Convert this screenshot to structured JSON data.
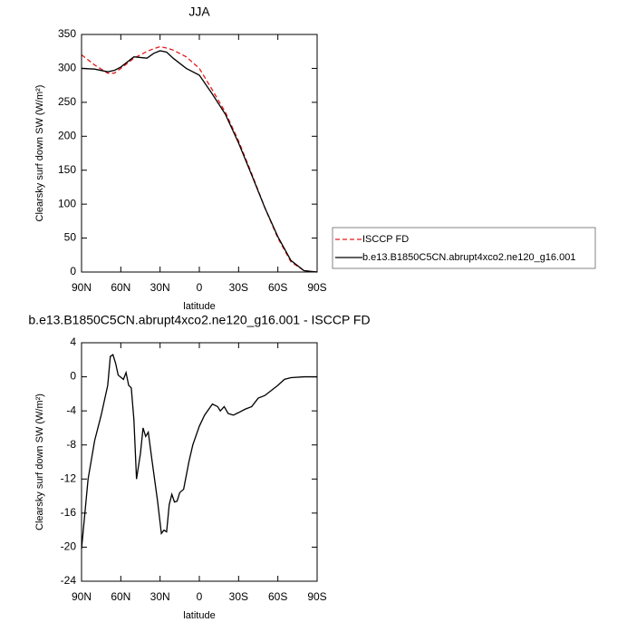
{
  "chart_data": [
    {
      "type": "line",
      "title": "JJA",
      "xlabel": "latitude",
      "ylabel": "Clearsky surf down SW (W/m²)",
      "x": [
        90,
        80,
        70,
        65,
        60,
        50,
        40,
        35,
        30,
        25,
        20,
        10,
        0,
        -10,
        -20,
        -30,
        -40,
        -50,
        -60,
        -70,
        -80,
        -90
      ],
      "series": [
        {
          "name": "ISCCP FD",
          "color": "#e41a1c",
          "dash": "dashed",
          "values": [
            320,
            305,
            293,
            293,
            300,
            315,
            325,
            329,
            332,
            330,
            327,
            317,
            300,
            268,
            235,
            193,
            145,
            95,
            50,
            15,
            2,
            0
          ]
        },
        {
          "name": "b.e13.B1850C5CN.abrupt4xco2.ne120_g16.001",
          "color": "#000000",
          "dash": "solid",
          "values": [
            300,
            299,
            295,
            297,
            302,
            317,
            315,
            322,
            326,
            324,
            315,
            300,
            290,
            262,
            232,
            190,
            143,
            95,
            52,
            17,
            2,
            0
          ]
        }
      ],
      "xlim": [
        90,
        -90
      ],
      "xticks": [
        {
          "value": 90,
          "label": "90N"
        },
        {
          "value": 60,
          "label": "60N"
        },
        {
          "value": 30,
          "label": "30N"
        },
        0,
        {
          "value": -30,
          "label": "30S"
        },
        {
          "value": -60,
          "label": "60S"
        },
        {
          "value": -90,
          "label": "90S"
        }
      ],
      "ylim": [
        0,
        350
      ],
      "yticks": [
        0,
        50,
        100,
        150,
        200,
        250,
        300,
        350
      ],
      "legend": "outside right"
    },
    {
      "type": "line",
      "title": "b.e13.B1850C5CN.abrupt4xco2.ne120_g16.001 - ISCCP FD",
      "xlabel": "latitude",
      "ylabel": "Clearsky surf down SW (W/m²)",
      "x": [
        90,
        85,
        80,
        75,
        70,
        68,
        66,
        64,
        62,
        58,
        56,
        54,
        52,
        50,
        48,
        45,
        43,
        41,
        39,
        36,
        32,
        29,
        27,
        25,
        23,
        21,
        19,
        17,
        15,
        12,
        8,
        5,
        0,
        -4,
        -10,
        -14,
        -16,
        -19,
        -22,
        -26,
        -30,
        -35,
        -40,
        -45,
        -50,
        -55,
        -60,
        -65,
        -70,
        -80,
        -90
      ],
      "series": [
        {
          "color": "#000000",
          "dash": "solid",
          "values": [
            -20.2,
            -12,
            -7.5,
            -4.5,
            -1,
            2.4,
            2.6,
            1.6,
            0.2,
            -0.3,
            0.5,
            -1,
            -1.3,
            -5,
            -12,
            -9,
            -6,
            -7,
            -6.5,
            -10,
            -14.5,
            -18.4,
            -18,
            -18.2,
            -15,
            -13.8,
            -14.7,
            -14.6,
            -13.6,
            -13.2,
            -10,
            -8,
            -5.8,
            -4.5,
            -3.2,
            -3.5,
            -4,
            -3.5,
            -4.3,
            -4.5,
            -4.2,
            -3.8,
            -3.5,
            -2.5,
            -2.2,
            -1.6,
            -1,
            -0.3,
            -0.1,
            0,
            0
          ]
        }
      ],
      "xlim": [
        90,
        -90
      ],
      "xticks": [
        {
          "value": 90,
          "label": "90N"
        },
        {
          "value": 60,
          "label": "60N"
        },
        {
          "value": 30,
          "label": "30N"
        },
        0,
        {
          "value": -30,
          "label": "30S"
        },
        {
          "value": -60,
          "label": "60S"
        },
        {
          "value": -90,
          "label": "90S"
        }
      ],
      "ylim": [
        -24,
        4
      ],
      "yticks": [
        -24,
        -20,
        -16,
        -12,
        -8,
        -4,
        0,
        4
      ]
    }
  ]
}
